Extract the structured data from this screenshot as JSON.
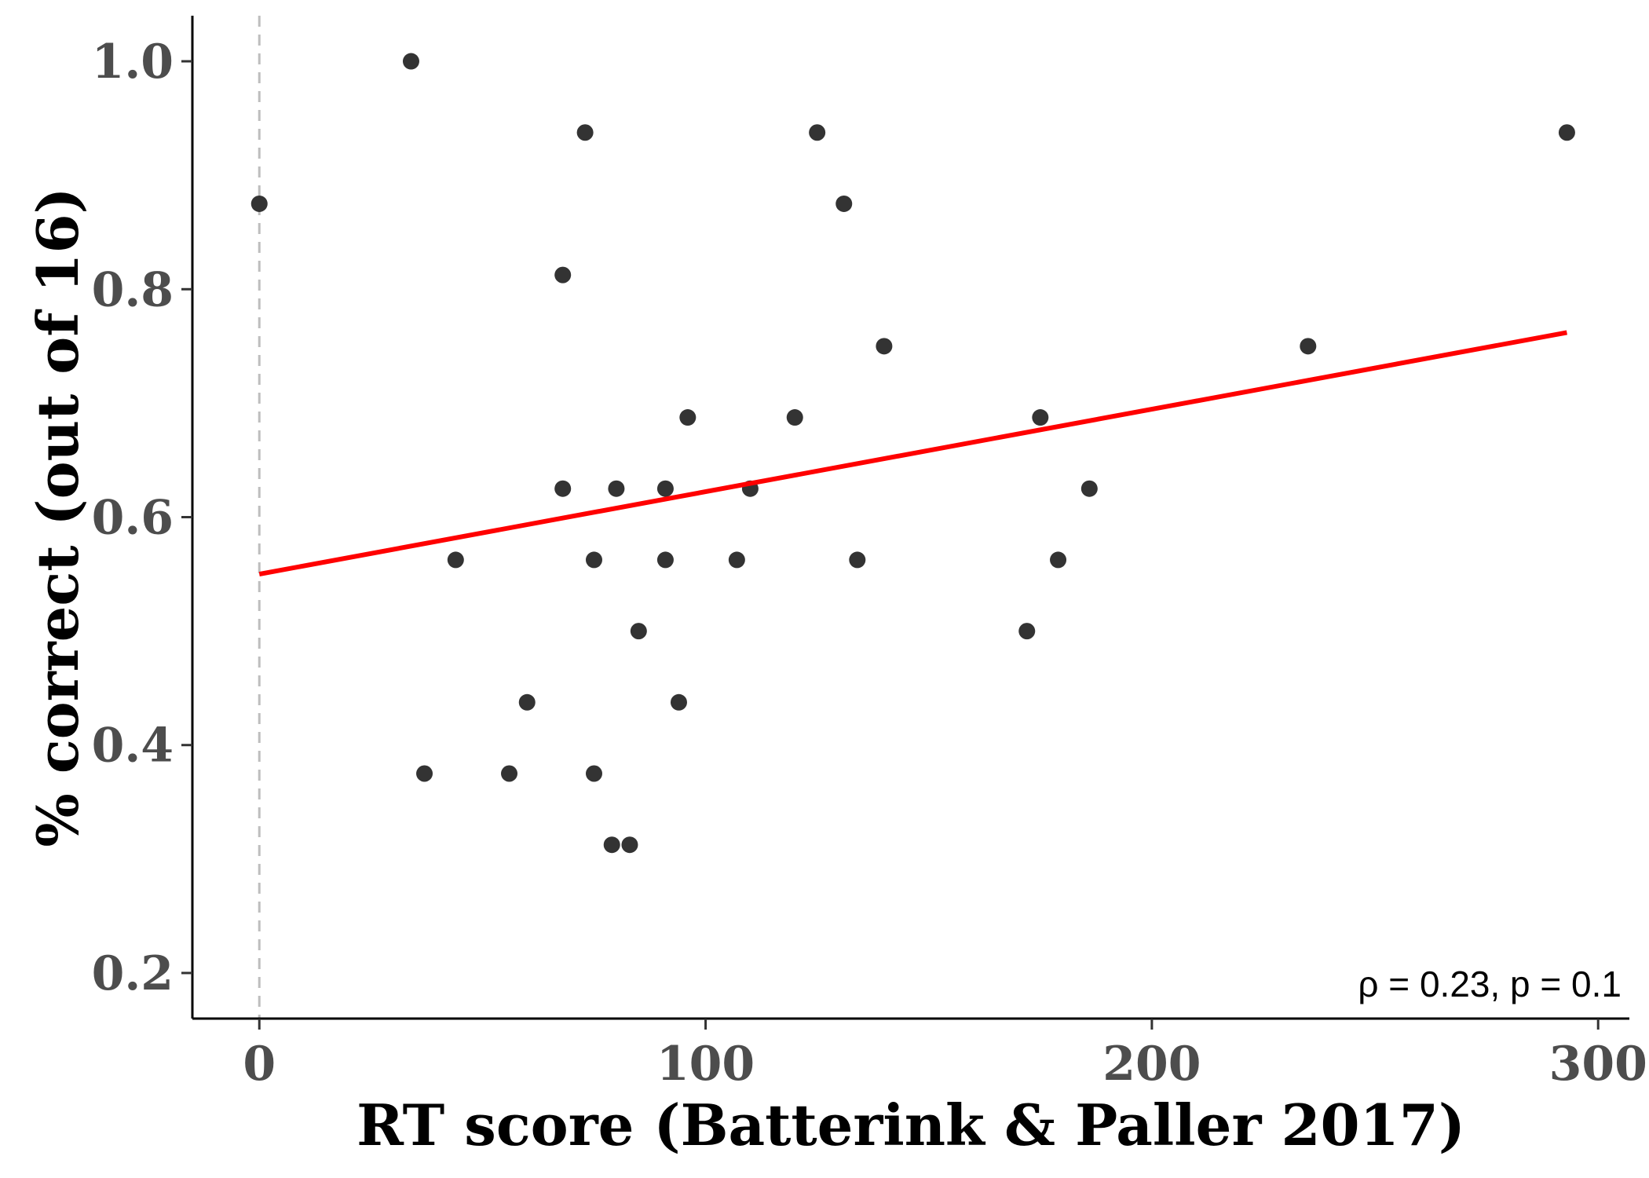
{
  "chart_data": {
    "type": "scatter",
    "title": "",
    "xlabel": "RT score (Batterink & Paller 2017)",
    "ylabel": "% correct (out of 16)",
    "xlim": [
      -15,
      307
    ],
    "ylim": [
      0.16,
      1.04
    ],
    "x_ticks": [
      0,
      100,
      200,
      300
    ],
    "x_tick_labels": [
      "0",
      "100",
      "200",
      "300"
    ],
    "y_ticks": [
      0.2,
      0.4,
      0.6,
      0.8,
      1.0
    ],
    "y_tick_labels": [
      "0.2",
      "0.4",
      "0.6",
      "0.8",
      "1.0"
    ],
    "grid": false,
    "reference_line": {
      "orientation": "vertical",
      "x": 0,
      "style": "dashed",
      "color": "#bebebe"
    },
    "point_color": "#333333",
    "fit_line": {
      "color": "#ff0000",
      "x": [
        0,
        293
      ],
      "y": [
        0.55,
        0.762
      ]
    },
    "annotation": "ρ = 0.23, p = 0.1",
    "points": [
      {
        "x": 0,
        "y": 0.875
      },
      {
        "x": 34,
        "y": 1.0
      },
      {
        "x": 37,
        "y": 0.375
      },
      {
        "x": 44,
        "y": 0.5625
      },
      {
        "x": 56,
        "y": 0.375
      },
      {
        "x": 60,
        "y": 0.4375
      },
      {
        "x": 68,
        "y": 0.8125
      },
      {
        "x": 68,
        "y": 0.625
      },
      {
        "x": 73,
        "y": 0.9375
      },
      {
        "x": 75,
        "y": 0.5625
      },
      {
        "x": 75,
        "y": 0.375
      },
      {
        "x": 79,
        "y": 0.3125
      },
      {
        "x": 80,
        "y": 0.625
      },
      {
        "x": 83,
        "y": 0.3125
      },
      {
        "x": 85,
        "y": 0.5
      },
      {
        "x": 91,
        "y": 0.5625
      },
      {
        "x": 91,
        "y": 0.625
      },
      {
        "x": 94,
        "y": 0.4375
      },
      {
        "x": 96,
        "y": 0.6875
      },
      {
        "x": 107,
        "y": 0.5625
      },
      {
        "x": 110,
        "y": 0.625
      },
      {
        "x": 120,
        "y": 0.6875
      },
      {
        "x": 125,
        "y": 0.9375
      },
      {
        "x": 131,
        "y": 0.875
      },
      {
        "x": 134,
        "y": 0.5625
      },
      {
        "x": 140,
        "y": 0.75
      },
      {
        "x": 172,
        "y": 0.5
      },
      {
        "x": 175,
        "y": 0.6875
      },
      {
        "x": 179,
        "y": 0.5625
      },
      {
        "x": 186,
        "y": 0.625
      },
      {
        "x": 235,
        "y": 0.75
      },
      {
        "x": 293,
        "y": 0.9375
      }
    ]
  }
}
